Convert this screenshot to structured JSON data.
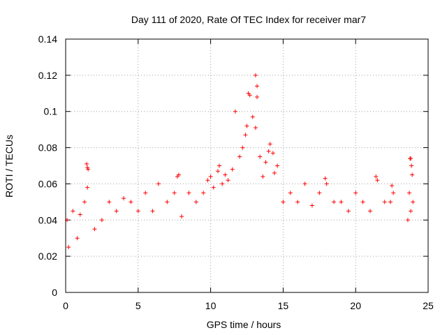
{
  "chart_data": {
    "type": "scatter",
    "title": "Day 111 of 2020, Rate Of TEC Index for receiver mar7",
    "xlabel": "GPS time / hours",
    "ylabel": "ROTI / TECUs",
    "xlim": [
      0,
      25
    ],
    "ylim": [
      0,
      0.14
    ],
    "x_ticks": [
      0,
      5,
      10,
      15,
      20,
      25
    ],
    "y_ticks": [
      0,
      0.02,
      0.04,
      0.06,
      0.08,
      0.1,
      0.12,
      0.14
    ],
    "x_tick_labels": [
      "0",
      "5",
      "10",
      "15",
      "20",
      "25"
    ],
    "y_tick_labels": [
      "0",
      "0.02",
      "0.04",
      "0.06",
      "0.08",
      "0.1",
      "0.12",
      "0.14"
    ],
    "grid": true,
    "marker": "+",
    "color": "#ff0000",
    "series": [
      {
        "name": "ROTI",
        "points": [
          [
            0.1,
            0.04
          ],
          [
            0.2,
            0.025
          ],
          [
            0.5,
            0.045
          ],
          [
            0.8,
            0.03
          ],
          [
            1.0,
            0.043
          ],
          [
            1.45,
            0.071
          ],
          [
            1.5,
            0.069
          ],
          [
            1.55,
            0.068
          ],
          [
            1.5,
            0.058
          ],
          [
            1.3,
            0.05
          ],
          [
            2.0,
            0.035
          ],
          [
            2.5,
            0.04
          ],
          [
            3.0,
            0.05
          ],
          [
            3.5,
            0.045
          ],
          [
            4.0,
            0.052
          ],
          [
            4.5,
            0.05
          ],
          [
            5.0,
            0.045
          ],
          [
            5.5,
            0.055
          ],
          [
            6.0,
            0.045
          ],
          [
            6.4,
            0.06
          ],
          [
            7.0,
            0.05
          ],
          [
            7.5,
            0.055
          ],
          [
            7.7,
            0.064
          ],
          [
            7.8,
            0.065
          ],
          [
            8.0,
            0.042
          ],
          [
            8.5,
            0.055
          ],
          [
            9.0,
            0.05
          ],
          [
            9.5,
            0.055
          ],
          [
            9.8,
            0.062
          ],
          [
            10.0,
            0.064
          ],
          [
            10.2,
            0.058
          ],
          [
            10.5,
            0.067
          ],
          [
            10.6,
            0.07
          ],
          [
            10.8,
            0.06
          ],
          [
            11.0,
            0.065
          ],
          [
            11.2,
            0.062
          ],
          [
            11.5,
            0.068
          ],
          [
            11.7,
            0.1
          ],
          [
            12.0,
            0.075
          ],
          [
            12.2,
            0.08
          ],
          [
            12.4,
            0.087
          ],
          [
            12.5,
            0.092
          ],
          [
            12.6,
            0.11
          ],
          [
            12.7,
            0.109
          ],
          [
            12.9,
            0.097
          ],
          [
            13.1,
            0.091
          ],
          [
            13.1,
            0.12
          ],
          [
            13.2,
            0.114
          ],
          [
            13.2,
            0.108
          ],
          [
            13.4,
            0.075
          ],
          [
            13.6,
            0.064
          ],
          [
            13.8,
            0.072
          ],
          [
            14.0,
            0.078
          ],
          [
            14.1,
            0.082
          ],
          [
            14.3,
            0.077
          ],
          [
            14.4,
            0.066
          ],
          [
            14.6,
            0.07
          ],
          [
            15.0,
            0.05
          ],
          [
            15.5,
            0.055
          ],
          [
            16.0,
            0.05
          ],
          [
            16.5,
            0.06
          ],
          [
            17.0,
            0.048
          ],
          [
            17.5,
            0.055
          ],
          [
            17.9,
            0.063
          ],
          [
            18.0,
            0.06
          ],
          [
            18.5,
            0.05
          ],
          [
            19.0,
            0.05
          ],
          [
            19.5,
            0.045
          ],
          [
            20.0,
            0.055
          ],
          [
            20.5,
            0.05
          ],
          [
            21.0,
            0.045
          ],
          [
            21.4,
            0.064
          ],
          [
            21.5,
            0.062
          ],
          [
            22.0,
            0.05
          ],
          [
            22.4,
            0.05
          ],
          [
            22.5,
            0.059
          ],
          [
            22.6,
            0.055
          ],
          [
            23.6,
            0.04
          ],
          [
            23.75,
            0.074
          ],
          [
            23.8,
            0.074
          ],
          [
            23.85,
            0.07
          ],
          [
            23.9,
            0.065
          ],
          [
            23.7,
            0.055
          ],
          [
            23.95,
            0.05
          ],
          [
            23.8,
            0.045
          ]
        ]
      }
    ]
  }
}
